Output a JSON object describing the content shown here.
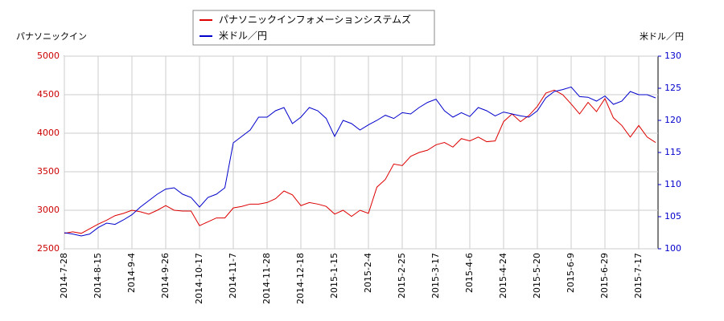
{
  "chart_data": {
    "type": "line",
    "y_label": "パナソニックイン",
    "y2_label": "米ドル／円",
    "categories": [
      "2014-7-28",
      null,
      null,
      null,
      "2014-8-15",
      null,
      null,
      null,
      "2014-9-4",
      null,
      null,
      null,
      "2014-9-26",
      null,
      null,
      null,
      "2014-10-17",
      null,
      null,
      null,
      "2014-11-7",
      null,
      null,
      null,
      "2014-11-28",
      null,
      null,
      null,
      "2014-12-18",
      null,
      null,
      null,
      "2015-1-15",
      null,
      null,
      null,
      "2015-2-4",
      null,
      null,
      null,
      "2015-2-25",
      null,
      null,
      null,
      "2015-3-17",
      null,
      null,
      null,
      "2015-4-6",
      null,
      null,
      null,
      "2015-4-24",
      null,
      null,
      null,
      "2015-5-20",
      null,
      null,
      null,
      "2015-6-9",
      null,
      null,
      null,
      "2015-6-29",
      null,
      null,
      null,
      "2015-7-17",
      null,
      null
    ],
    "series": [
      {
        "name": "パナソニックインフォメーションシステムズ",
        "color": "#dd0000",
        "values": [
          2700,
          2720,
          2700,
          2760,
          2820,
          2870,
          2930,
          2960,
          3000,
          2980,
          2950,
          3000,
          3060,
          3000,
          2990,
          2990,
          2800,
          2850,
          2900,
          2900,
          3030,
          3050,
          3080,
          3080,
          3100,
          3150,
          3250,
          3200,
          3060,
          3100,
          3080,
          3050,
          2950,
          3000,
          2920,
          3000,
          2960,
          3300,
          3400,
          3600,
          3580,
          3700,
          3750,
          3780,
          3850,
          3880,
          3820,
          3930,
          3900,
          3950,
          3890,
          3900,
          4150,
          4250,
          4150,
          4230,
          4350,
          4520,
          4560,
          4500,
          4380,
          4250,
          4400,
          4280,
          4450,
          4200,
          4100,
          3950,
          4100,
          3950,
          3880
        ]
      },
      {
        "name": "米ドル／円",
        "color": "#0000cc",
        "axis": "y2",
        "values": [
          102.5,
          102.3,
          102,
          102.3,
          103.3,
          104,
          103.8,
          104.5,
          105.3,
          106.5,
          107.5,
          108.5,
          109.3,
          109.5,
          108.5,
          108,
          106.5,
          108,
          108.5,
          109.5,
          116.5,
          117.5,
          118.5,
          120.5,
          120.5,
          121.5,
          122,
          119.5,
          120.5,
          122,
          121.5,
          120.3,
          117.5,
          120,
          119.5,
          118.5,
          119.3,
          120,
          120.8,
          120.3,
          121.2,
          121,
          122,
          122.8,
          123.3,
          121.5,
          120.5,
          121.2,
          120.6,
          122,
          121.5,
          120.7,
          121.3,
          121,
          120.7,
          120.5,
          121.5,
          123.5,
          124.5,
          124.8,
          125.2,
          123.7,
          123.6,
          123,
          123.8,
          122.5,
          123,
          124.5,
          124,
          124,
          123.5
        ]
      }
    ],
    "ylim": [
      2500,
      5000
    ],
    "yticks": [
      2500,
      3000,
      3500,
      4000,
      4500,
      5000
    ],
    "y2lim": [
      100,
      130
    ],
    "y2ticks": [
      100,
      105,
      110,
      115,
      120,
      125,
      130
    ],
    "grid": true
  }
}
